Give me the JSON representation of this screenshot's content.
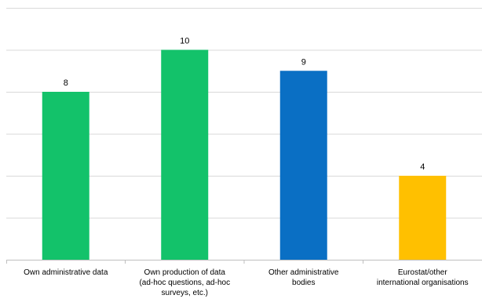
{
  "chart_data": {
    "type": "bar",
    "categories": [
      [
        "Own administrative data"
      ],
      [
        "Own production of data",
        "(ad-hoc questions, ad-hoc",
        "surveys, etc.)"
      ],
      [
        "Other administrative",
        "bodies"
      ],
      [
        "Eurostat/other",
        "international organisations"
      ]
    ],
    "values": [
      8,
      10,
      9,
      4
    ],
    "colors": [
      "#13c26a",
      "#13c26a",
      "#0a6fc4",
      "#ffc000"
    ],
    "ylim": [
      0,
      12
    ],
    "gridlines": true,
    "legend": "none"
  }
}
